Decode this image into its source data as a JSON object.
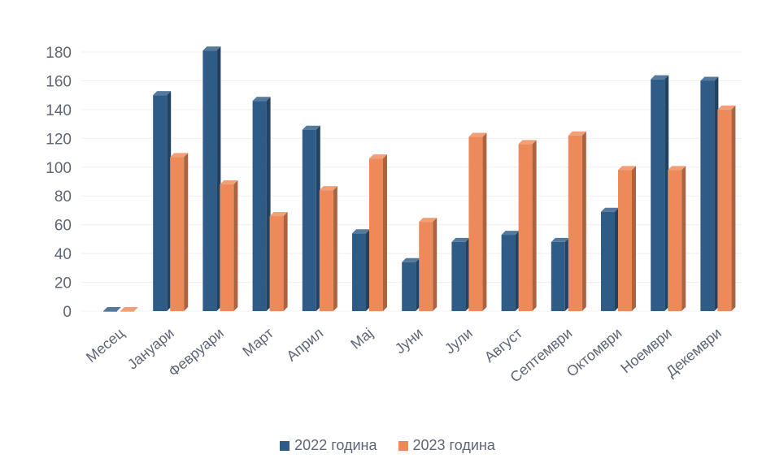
{
  "chart_data": {
    "type": "bar",
    "categories": [
      "Месец",
      "Јануари",
      "Февруари",
      "Март",
      "Април",
      "Мај",
      "Јуни",
      "Јули",
      "Август",
      "Септември",
      "Октомври",
      "Ноември",
      "Декември"
    ],
    "series": [
      {
        "name": "2022 година",
        "color": "#2f5b87",
        "values": [
          0,
          150,
          181,
          146,
          126,
          54,
          34,
          48,
          53,
          48,
          69,
          161,
          160
        ]
      },
      {
        "name": "2023 година",
        "color": "#ee8a59",
        "values": [
          0,
          107,
          88,
          66,
          84,
          106,
          62,
          121,
          116,
          122,
          98,
          98,
          140
        ]
      }
    ],
    "ylim": [
      0,
      180
    ],
    "yticks": [
      0,
      20,
      40,
      60,
      80,
      100,
      120,
      140,
      160,
      180
    ],
    "grid": true,
    "legend_position": "bottom",
    "bar_style": "3d"
  }
}
